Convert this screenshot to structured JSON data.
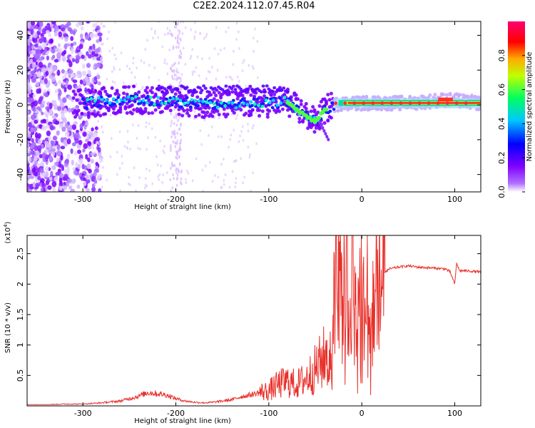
{
  "title": "C2E2.2024.112.07.45.R04",
  "chart_data": [
    {
      "type": "heatmap",
      "xlabel": "Height of straight line (km)",
      "ylabel": "Frequency (Hz)",
      "xlim": [
        -360,
        128
      ],
      "ylim": [
        -50,
        48
      ],
      "xticks": [
        -300,
        -200,
        -100,
        0,
        100
      ],
      "yticks": [
        -40,
        -20,
        0,
        20,
        40
      ],
      "colorbar": {
        "label": "Normalized spectral amplitude",
        "range": [
          0,
          1
        ],
        "ticks": [
          0.0,
          0.2,
          0.4,
          0.6,
          0.8
        ],
        "colormap": [
          "#ffffff",
          "#8a00ff",
          "#0000ff",
          "#00c8ff",
          "#00ff60",
          "#ffff00",
          "#ff8000",
          "#ff0000",
          "#ff0080"
        ]
      },
      "ridge": [
        {
          "x": -300,
          "y": 1
        },
        {
          "x": -250,
          "y": 3
        },
        {
          "x": -200,
          "y": 2
        },
        {
          "x": -150,
          "y": 0
        },
        {
          "x": -100,
          "y": 1
        },
        {
          "x": -80,
          "y": 2
        },
        {
          "x": -70,
          "y": -2
        },
        {
          "x": -60,
          "y": -6
        },
        {
          "x": -50,
          "y": -10
        },
        {
          "x": -40,
          "y": -3
        },
        {
          "x": -30,
          "y": 0
        },
        {
          "x": -20,
          "y": 1
        },
        {
          "x": 0,
          "y": 1
        },
        {
          "x": 50,
          "y": 1
        },
        {
          "x": 90,
          "y": 3
        },
        {
          "x": 128,
          "y": 1
        }
      ]
    },
    {
      "type": "line",
      "xlabel": "Height of straight line (km)",
      "ylabel": "SNR (10 * v/v)",
      "yunit": "(x10",
      "yunit_exp": "4",
      "yunit_close": ")",
      "xlim": [
        -360,
        128
      ],
      "ylim": [
        0,
        2.8
      ],
      "xticks": [
        -300,
        -200,
        -100,
        0,
        100
      ],
      "yticks": [
        0.5,
        1.0,
        1.5,
        2.0,
        2.5
      ],
      "color": "#e8302a",
      "series": [
        {
          "x": [
            -360,
            -340,
            -320,
            -300,
            -280,
            -260,
            -250,
            -240,
            -230,
            -220,
            -210,
            -200,
            -190,
            -180,
            -170,
            -160,
            -150,
            -140,
            -130,
            -120,
            -110,
            -100,
            -90,
            -80,
            -70,
            -60,
            -50,
            -40,
            -35,
            -30,
            -25,
            -20,
            -18,
            -15,
            -12,
            -10,
            -5,
            0,
            5,
            10,
            15,
            20,
            25,
            30,
            40,
            50,
            60,
            70,
            80,
            90,
            95,
            100,
            102,
            105,
            110,
            120,
            128
          ],
          "y": [
            0.02,
            0.02,
            0.03,
            0.03,
            0.05,
            0.08,
            0.12,
            0.16,
            0.22,
            0.2,
            0.18,
            0.12,
            0.08,
            0.06,
            0.05,
            0.06,
            0.08,
            0.1,
            0.15,
            0.18,
            0.22,
            0.25,
            0.35,
            0.4,
            0.35,
            0.45,
            0.6,
            0.8,
            1.0,
            1.4,
            2.5,
            1.2,
            2.8,
            1.3,
            1.6,
            2.0,
            1.5,
            1.8,
            1.7,
            1.5,
            1.8,
            2.1,
            2.2,
            2.25,
            2.28,
            2.3,
            2.28,
            2.27,
            2.26,
            2.25,
            2.2,
            2.0,
            2.35,
            2.22,
            2.22,
            2.21,
            2.2
          ]
        }
      ]
    }
  ]
}
